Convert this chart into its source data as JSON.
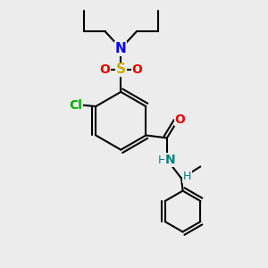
{
  "background_color": "#ececec",
  "bond_color": "#000000",
  "bond_width": 1.5,
  "atom_colors": {
    "N_blue": "#0000ee",
    "N_teal": "#008080",
    "O": "#ee0000",
    "S": "#ccaa00",
    "Cl": "#00aa00",
    "H": "#008080"
  },
  "figsize": [
    3.0,
    3.0
  ],
  "dpi": 100
}
